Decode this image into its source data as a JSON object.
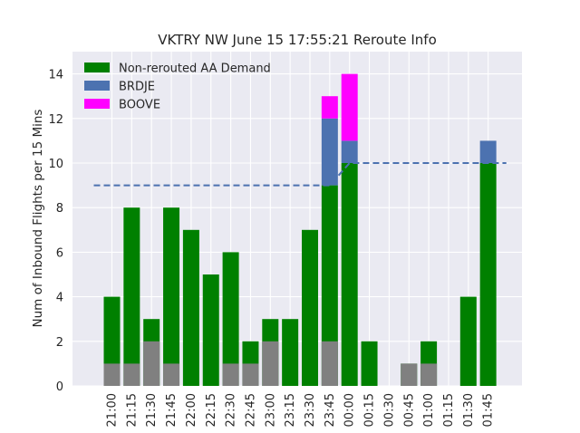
{
  "chart_data": {
    "type": "bar",
    "title": "VKTRY NW June 15 17:55:21 Reroute Info",
    "xlabel": "",
    "ylabel": "Num of Inbound Flights per 15 Mins",
    "ylim": [
      0,
      15
    ],
    "yticks": [
      0,
      2,
      4,
      6,
      8,
      10,
      12,
      14
    ],
    "grid": true,
    "legend_position": "top-left",
    "categories": [
      "21:00",
      "21:15",
      "21:30",
      "21:45",
      "22:00",
      "22:15",
      "22:30",
      "22:45",
      "23:00",
      "23:15",
      "23:30",
      "23:45",
      "00:00",
      "00:15",
      "00:30",
      "00:45",
      "01:00",
      "01:15",
      "01:30",
      "01:45"
    ],
    "series": [
      {
        "name": "Non-rerouted AA Demand",
        "color": "#008000",
        "values": [
          4,
          8,
          3,
          8,
          7,
          5,
          6,
          2,
          3,
          3,
          7,
          9,
          10,
          2,
          0,
          1,
          2,
          0,
          4,
          10
        ],
        "in_legend": true
      },
      {
        "name": "BRDJE",
        "color": "#4C72B0",
        "values": [
          0,
          0,
          0,
          0,
          0,
          0,
          0,
          0,
          0,
          0,
          0,
          3,
          1,
          0,
          0,
          0,
          0,
          0,
          0,
          1
        ],
        "in_legend": true
      },
      {
        "name": "BOOVE",
        "color": "#FF00FF",
        "values": [
          0,
          0,
          0,
          0,
          0,
          0,
          0,
          0,
          0,
          0,
          0,
          1,
          3,
          0,
          0,
          0,
          0,
          0,
          0,
          0
        ],
        "in_legend": true
      },
      {
        "name": "",
        "color": "#808080",
        "values": [
          1,
          1,
          2,
          1,
          0,
          0,
          1,
          1,
          2,
          0,
          0,
          2,
          0,
          0,
          0,
          1,
          1,
          0,
          0,
          0
        ],
        "overlay": true,
        "in_legend": false
      }
    ],
    "threshold_line": {
      "color": "#4C72B0",
      "style": "dashed",
      "points": [
        [
          "21:00",
          9
        ],
        [
          "23:45",
          9
        ],
        [
          "00:00",
          10
        ],
        [
          "01:45",
          10
        ]
      ]
    },
    "colors": {
      "plot_background": "#EAEAF2",
      "grid": "#FFFFFF"
    }
  }
}
